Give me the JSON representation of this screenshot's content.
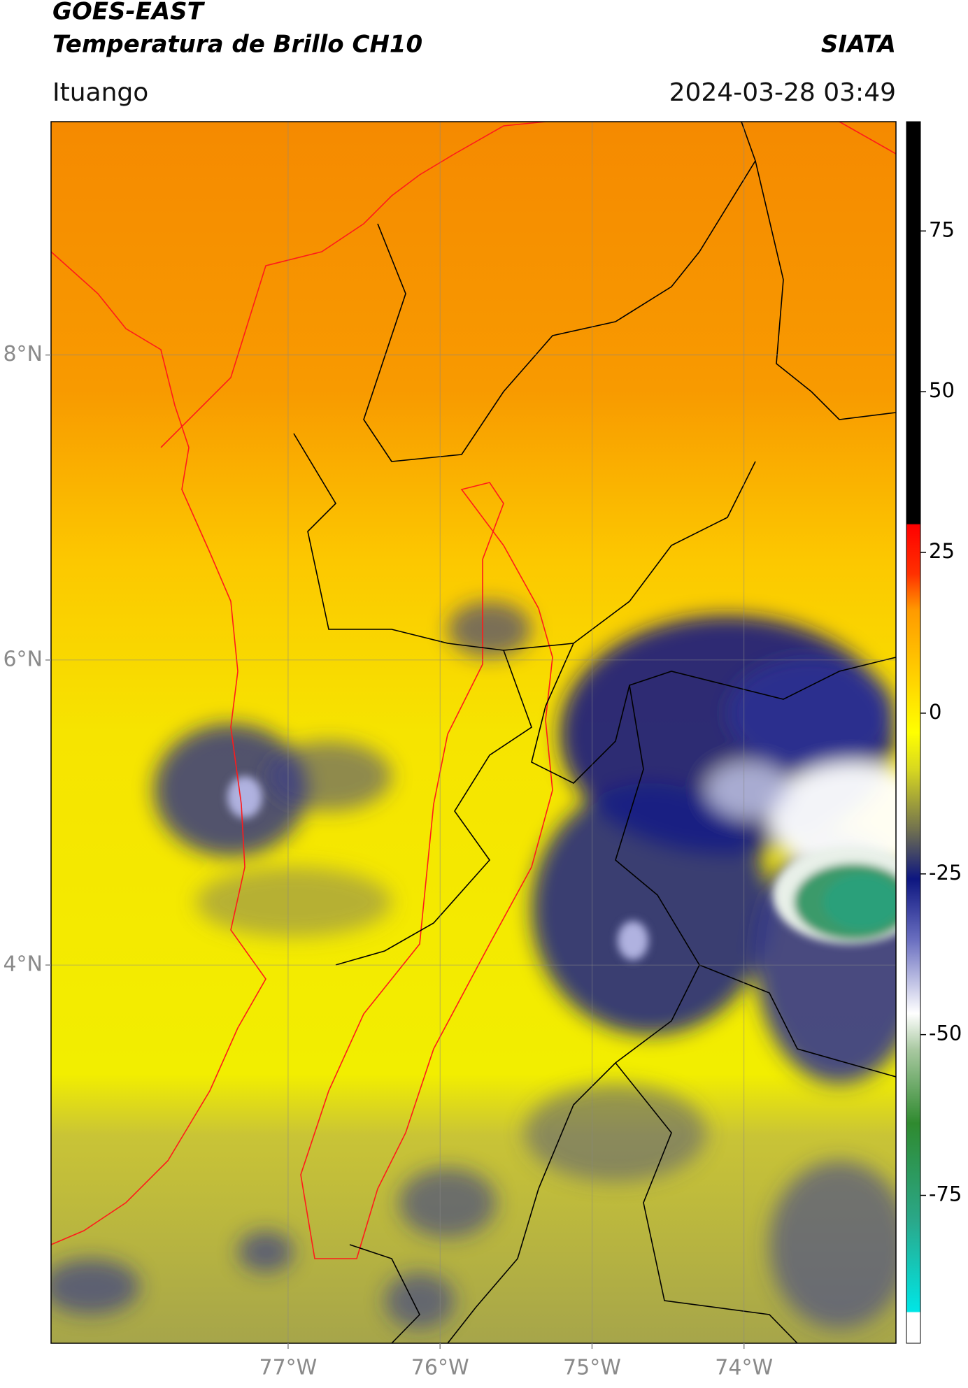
{
  "header": {
    "title_line1": "GOES-EAST",
    "title_line2": "Temperatura de Brillo CH10",
    "source": "SIATA",
    "location": "Ituango",
    "datetime": "2024-03-28 03:49"
  },
  "map": {
    "latlim": [
      1.52,
      9.53
    ],
    "lonlim": [
      -78.56,
      -73.0
    ],
    "latticks": [
      {
        "value": 4,
        "label": "4°N"
      },
      {
        "value": 6,
        "label": "6°N"
      },
      {
        "value": 8,
        "label": "8°N"
      }
    ],
    "lonticks": [
      {
        "value": -77,
        "label": "77°W"
      },
      {
        "value": -76,
        "label": "76°W"
      },
      {
        "value": -75,
        "label": "75°W"
      },
      {
        "value": -74,
        "label": "74°W"
      }
    ],
    "grid": true
  },
  "colorbar": {
    "lim": [
      -98,
      92
    ],
    "ticks": [
      75,
      50,
      25,
      0,
      -25,
      -50,
      -75
    ]
  }
}
